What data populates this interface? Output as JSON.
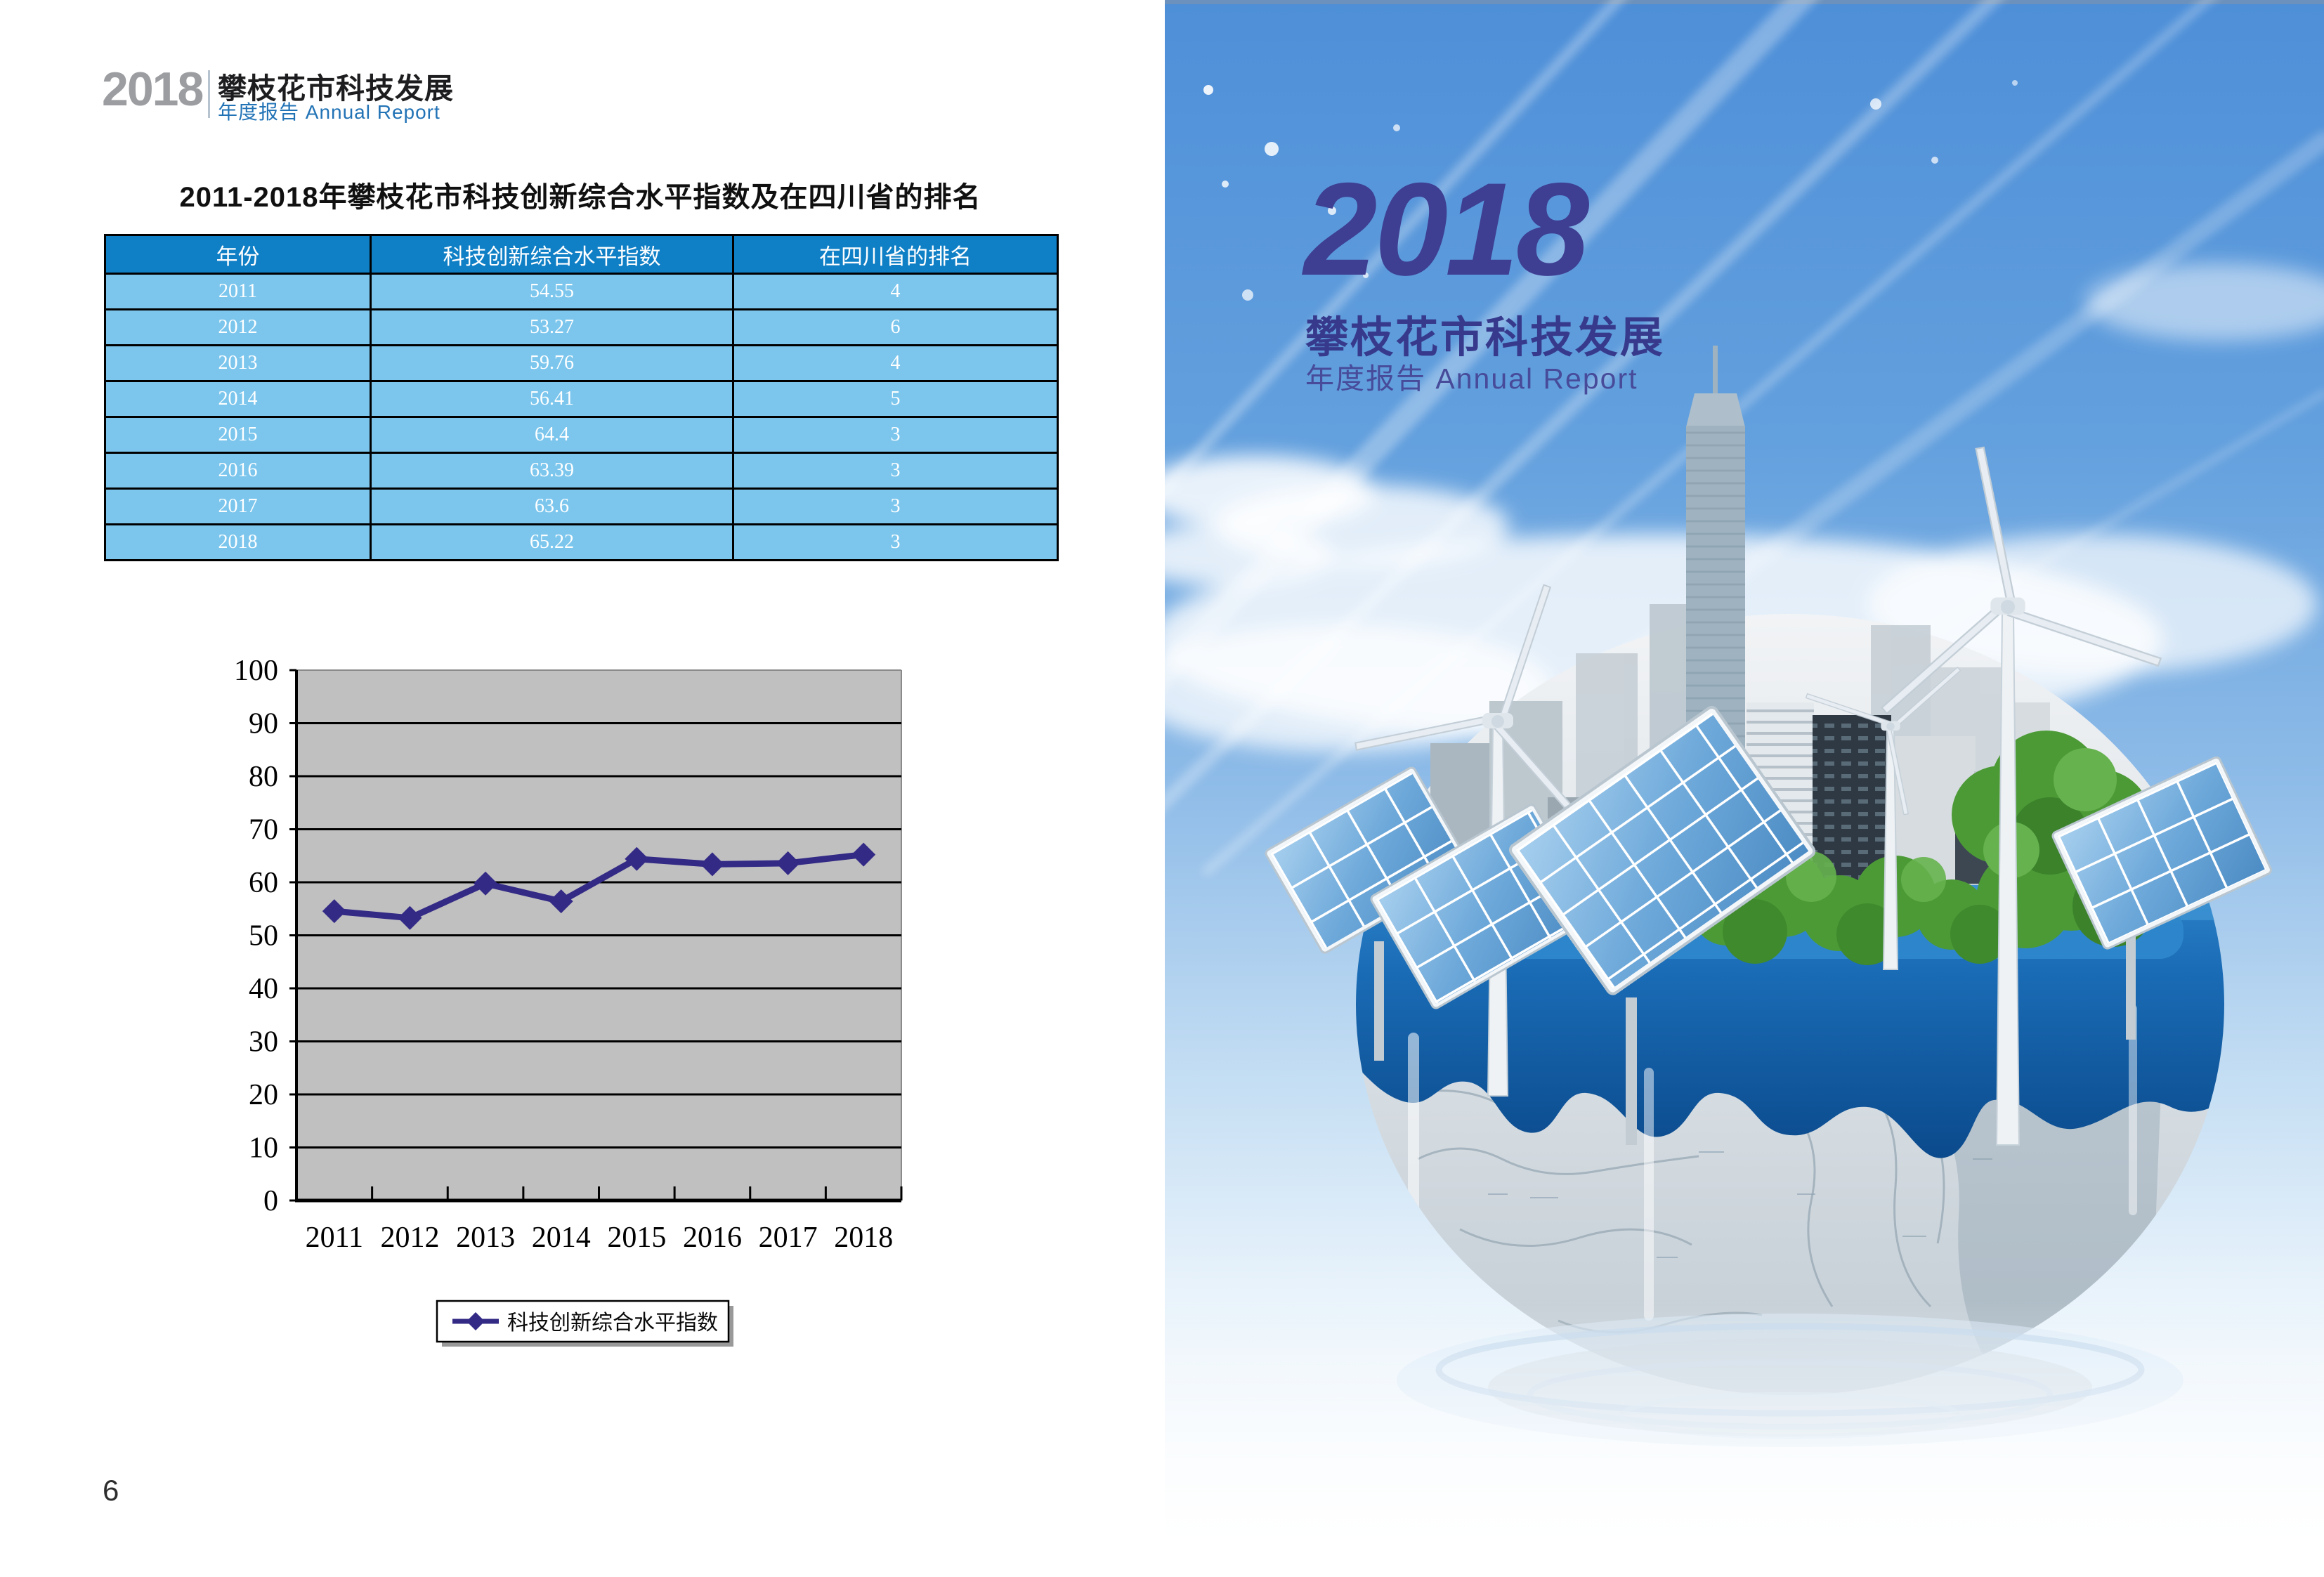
{
  "left_page": {
    "logo": {
      "year": "2018",
      "title_cn": "攀枝花市科技发展",
      "subtitle": "年度报告 Annual Report"
    },
    "section_title": "2011-2018年攀枝花市科技创新综合水平指数及在四川省的排名",
    "table": {
      "headers": [
        "年份",
        "科技创新综合水平指数",
        "在四川省的排名"
      ],
      "rows": [
        [
          "2011",
          "54.55",
          "4"
        ],
        [
          "2012",
          "53.27",
          "6"
        ],
        [
          "2013",
          "59.76",
          "4"
        ],
        [
          "2014",
          "56.41",
          "5"
        ],
        [
          "2015",
          "64.4",
          "3"
        ],
        [
          "2016",
          "63.39",
          "3"
        ],
        [
          "2017",
          "63.6",
          "3"
        ],
        [
          "2018",
          "65.22",
          "3"
        ]
      ]
    },
    "page_number": "6"
  },
  "chart_data": {
    "type": "line",
    "title": "",
    "xlabel": "",
    "ylabel": "",
    "categories": [
      "2011",
      "2012",
      "2013",
      "2014",
      "2015",
      "2016",
      "2017",
      "2018"
    ],
    "series": [
      {
        "name": "科技创新综合水平指数",
        "values": [
          54.55,
          53.27,
          59.76,
          56.41,
          64.4,
          63.39,
          63.6,
          65.22
        ]
      }
    ],
    "ylim": [
      0,
      100
    ],
    "yticks": [
      0,
      10,
      20,
      30,
      40,
      50,
      60,
      70,
      80,
      90,
      100
    ],
    "grid": "horizontal",
    "legend_position": "bottom",
    "marker": "diamond",
    "colors": {
      "line": "#332a86",
      "plot_bg": "#c0c0c0",
      "gridline": "#000000"
    }
  },
  "right_page": {
    "year": "2018",
    "title_cn": "攀枝花市科技发展",
    "subtitle": "年度报告 Annual Report"
  },
  "colors": {
    "table_header_bg": "#0f7fc6",
    "table_row_bg": "#7cc6ed",
    "logo_year_gray": "#9b9da0",
    "logo_subtitle_blue": "#2273b6",
    "cover_text_indigo": "#3e3e92",
    "sky_blue": "#4e8fd8",
    "globe_water_deep": "#0b4a8c"
  }
}
